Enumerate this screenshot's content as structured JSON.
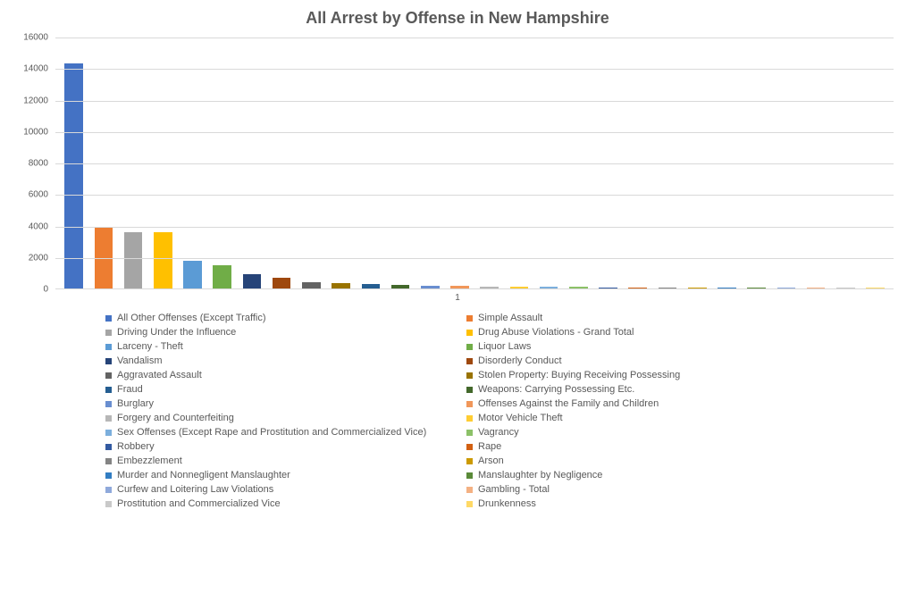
{
  "chart": {
    "type": "bar",
    "title": "All Arrest by Offense in New Hampshire",
    "title_fontsize": 18,
    "title_color": "#595959",
    "background_color": "#ffffff",
    "grid_color": "#d9d9d9",
    "label_color": "#595959",
    "tick_fontsize": 10,
    "legend_fontsize": 11,
    "x_category_label": "1",
    "ylim": [
      0,
      16000
    ],
    "ytick_step": 2000,
    "yticks": [
      0,
      2000,
      4000,
      6000,
      8000,
      10000,
      12000,
      14000,
      16000
    ],
    "series": [
      {
        "label": "All Other Offenses (Except Traffic)",
        "value": 14300,
        "color": "#4472c4"
      },
      {
        "label": "Simple Assault",
        "value": 3900,
        "color": "#ed7d31"
      },
      {
        "label": "Driving Under the Influence",
        "value": 3600,
        "color": "#a5a5a5"
      },
      {
        "label": "Drug Abuse Violations - Grand Total",
        "value": 3550,
        "color": "#ffc000"
      },
      {
        "label": "Larceny - Theft",
        "value": 1750,
        "color": "#5b9bd5"
      },
      {
        "label": "Liquor Laws",
        "value": 1450,
        "color": "#70ad47"
      },
      {
        "label": "Vandalism",
        "value": 900,
        "color": "#264478"
      },
      {
        "label": "Disorderly Conduct",
        "value": 700,
        "color": "#9e480e"
      },
      {
        "label": "Aggravated Assault",
        "value": 380,
        "color": "#636363"
      },
      {
        "label": "Stolen Property: Buying Receiving Possessing",
        "value": 330,
        "color": "#997300"
      },
      {
        "label": "Fraud",
        "value": 310,
        "color": "#255e91"
      },
      {
        "label": "Weapons: Carrying Possessing Etc.",
        "value": 200,
        "color": "#43682b"
      },
      {
        "label": "Burglary",
        "value": 180,
        "color": "#698ed0"
      },
      {
        "label": "Offenses Against the Family and Children",
        "value": 160,
        "color": "#f1975a"
      },
      {
        "label": "Forgery and Counterfeiting",
        "value": 130,
        "color": "#b7b7b7"
      },
      {
        "label": "Motor Vehicle Theft",
        "value": 110,
        "color": "#ffcd33"
      },
      {
        "label": "Sex Offenses (Except Rape and Prostitution and Commercialized Vice)",
        "value": 100,
        "color": "#7cafdd"
      },
      {
        "label": "Vagrancy",
        "value": 90,
        "color": "#8cc168"
      },
      {
        "label": "Robbery",
        "value": 70,
        "color": "#335aa1"
      },
      {
        "label": "Rape",
        "value": 60,
        "color": "#d26012"
      },
      {
        "label": "Embezzlement",
        "value": 40,
        "color": "#848484"
      },
      {
        "label": "Arson",
        "value": 30,
        "color": "#cc9a00"
      },
      {
        "label": "Murder and Nonnegligent Manslaughter",
        "value": 10,
        "color": "#327dc2"
      },
      {
        "label": "Manslaughter by Negligence",
        "value": 5,
        "color": "#5a8a39"
      },
      {
        "label": "Curfew and Loitering Law Violations",
        "value": 5,
        "color": "#8fa9db"
      },
      {
        "label": "Gambling - Total",
        "value": 3,
        "color": "#f4b183"
      },
      {
        "label": "Prostitution and Commercialized Vice",
        "value": 2,
        "color": "#c9c9c9"
      },
      {
        "label": "Drunkenness",
        "value": 1,
        "color": "#ffd966"
      }
    ]
  }
}
